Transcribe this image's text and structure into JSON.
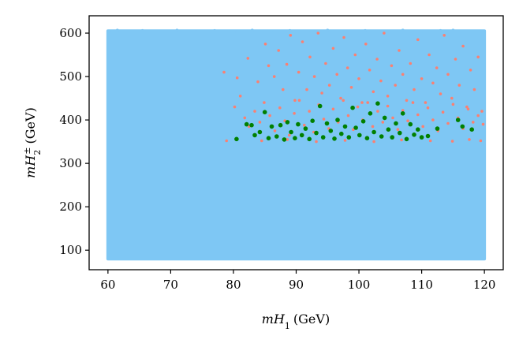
{
  "chart_data": {
    "type": "scatter",
    "xlabel": "mH1 (GeV)",
    "ylabel": "mH2± (GeV)",
    "xlim": [
      57,
      123
    ],
    "ylim": [
      55,
      640
    ],
    "xticks": [
      60,
      70,
      80,
      90,
      100,
      110,
      120
    ],
    "yticks": [
      100,
      200,
      300,
      400,
      500,
      600
    ],
    "grid": false,
    "legend": "none",
    "series": [
      {
        "color": "#7ec7f4",
        "marker_size": 3,
        "render": "dense-region",
        "region": {
          "x": [
            60,
            120
          ],
          "y": [
            80,
            605
          ]
        },
        "points": [
          [
            60.2,
            604
          ],
          [
            61.5,
            607
          ],
          [
            63,
            603
          ],
          [
            65.5,
            606
          ],
          [
            68,
            602
          ],
          [
            71,
            607
          ],
          [
            74,
            604
          ],
          [
            77,
            606
          ],
          [
            80.5,
            603
          ],
          [
            83,
            607
          ],
          [
            86,
            604
          ],
          [
            89,
            606
          ],
          [
            92,
            602
          ],
          [
            95,
            607
          ],
          [
            98,
            604
          ],
          [
            101,
            606
          ],
          [
            104,
            603
          ],
          [
            107,
            607
          ],
          [
            110,
            604
          ],
          [
            113,
            606
          ],
          [
            115,
            607
          ],
          [
            117,
            603
          ],
          [
            119.5,
            605
          ]
        ]
      },
      {
        "color": "#fa8072",
        "marker_size": 3,
        "render": "points",
        "points": [
          [
            78.5,
            510
          ],
          [
            80.6,
            497
          ],
          [
            81.1,
            455
          ],
          [
            82.3,
            542
          ],
          [
            83.9,
            488
          ],
          [
            85.1,
            575
          ],
          [
            85.6,
            525
          ],
          [
            86.5,
            500
          ],
          [
            87.2,
            560
          ],
          [
            87.9,
            470
          ],
          [
            88.5,
            528
          ],
          [
            89.1,
            595
          ],
          [
            89.8,
            445
          ],
          [
            90.4,
            510
          ],
          [
            91,
            580
          ],
          [
            91.7,
            470
          ],
          [
            92.2,
            545
          ],
          [
            92.9,
            500
          ],
          [
            93.5,
            600
          ],
          [
            94.1,
            462
          ],
          [
            94.7,
            530
          ],
          [
            95.3,
            480
          ],
          [
            95.9,
            565
          ],
          [
            96.5,
            505
          ],
          [
            97.1,
            450
          ],
          [
            97.6,
            590
          ],
          [
            98.2,
            520
          ],
          [
            98.8,
            475
          ],
          [
            99.4,
            550
          ],
          [
            100,
            495
          ],
          [
            100.5,
            440
          ],
          [
            101.1,
            575
          ],
          [
            101.7,
            515
          ],
          [
            102.3,
            465
          ],
          [
            102.9,
            540
          ],
          [
            103.5,
            490
          ],
          [
            104,
            600
          ],
          [
            104.6,
            455
          ],
          [
            105.2,
            525
          ],
          [
            105.8,
            480
          ],
          [
            106.4,
            560
          ],
          [
            107,
            505
          ],
          [
            107.6,
            445
          ],
          [
            108.2,
            530
          ],
          [
            108.8,
            470
          ],
          [
            109.4,
            585
          ],
          [
            110,
            495
          ],
          [
            110.6,
            440
          ],
          [
            111.2,
            550
          ],
          [
            111.8,
            485
          ],
          [
            112.4,
            520
          ],
          [
            113,
            460
          ],
          [
            113.6,
            595
          ],
          [
            114.2,
            505
          ],
          [
            114.8,
            450
          ],
          [
            115.4,
            540
          ],
          [
            116,
            480
          ],
          [
            116.6,
            570
          ],
          [
            117.2,
            430
          ],
          [
            117.8,
            515
          ],
          [
            118.4,
            470
          ],
          [
            119,
            545
          ],
          [
            119.6,
            420
          ],
          [
            80.2,
            430
          ],
          [
            81.8,
            405
          ],
          [
            82.5,
            385
          ],
          [
            83.4,
            420
          ],
          [
            84.2,
            395
          ],
          [
            84.9,
            440
          ],
          [
            85.8,
            410
          ],
          [
            86.6,
            375
          ],
          [
            87.4,
            428
          ],
          [
            88.2,
            398
          ],
          [
            88.9,
            365
          ],
          [
            89.7,
            415
          ],
          [
            90.5,
            445
          ],
          [
            91.3,
            388
          ],
          [
            92.1,
            420
          ],
          [
            92.8,
            372
          ],
          [
            93.6,
            435
          ],
          [
            94.4,
            402
          ],
          [
            95.2,
            380
          ],
          [
            95.9,
            425
          ],
          [
            96.7,
            395
          ],
          [
            97.5,
            445
          ],
          [
            98.3,
            410
          ],
          [
            99.1,
            378
          ],
          [
            99.8,
            430
          ],
          [
            100.6,
            400
          ],
          [
            101.4,
            440
          ],
          [
            102.2,
            385
          ],
          [
            103,
            420
          ],
          [
            103.8,
            395
          ],
          [
            104.6,
            432
          ],
          [
            105.4,
            405
          ],
          [
            106.2,
            378
          ],
          [
            107,
            422
          ],
          [
            107.8,
            398
          ],
          [
            108.6,
            440
          ],
          [
            109.4,
            412
          ],
          [
            110.2,
            385
          ],
          [
            111,
            428
          ],
          [
            111.8,
            400
          ],
          [
            112.6,
            375
          ],
          [
            113.4,
            418
          ],
          [
            114.2,
            392
          ],
          [
            115,
            436
          ],
          [
            115.8,
            405
          ],
          [
            116.6,
            380
          ],
          [
            117.4,
            425
          ],
          [
            118.2,
            395
          ],
          [
            119,
            410
          ],
          [
            119.8,
            390
          ],
          [
            78.9,
            352
          ],
          [
            84.5,
            352
          ],
          [
            88.6,
            355
          ],
          [
            93.2,
            350
          ],
          [
            97.8,
            353
          ],
          [
            102.4,
            350
          ],
          [
            106.8,
            354
          ],
          [
            111.4,
            352
          ],
          [
            114.9,
            351
          ],
          [
            117.6,
            355
          ],
          [
            119.4,
            352
          ]
        ]
      },
      {
        "color": "#008000",
        "marker_size": 5,
        "render": "points",
        "points": [
          [
            80.5,
            356
          ],
          [
            82.1,
            390
          ],
          [
            82.9,
            388
          ],
          [
            83.4,
            365
          ],
          [
            84.2,
            372
          ],
          [
            85,
            418
          ],
          [
            85.6,
            358
          ],
          [
            86.1,
            385
          ],
          [
            86.9,
            362
          ],
          [
            87.5,
            388
          ],
          [
            88.1,
            355
          ],
          [
            88.6,
            395
          ],
          [
            89.2,
            372
          ],
          [
            89.8,
            358
          ],
          [
            90.3,
            390
          ],
          [
            90.9,
            365
          ],
          [
            91.5,
            380
          ],
          [
            92.1,
            356
          ],
          [
            92.6,
            398
          ],
          [
            93.2,
            370
          ],
          [
            93.8,
            432
          ],
          [
            94.3,
            360
          ],
          [
            94.9,
            392
          ],
          [
            95.5,
            375
          ],
          [
            96.1,
            357
          ],
          [
            96.6,
            400
          ],
          [
            97.2,
            368
          ],
          [
            97.8,
            385
          ],
          [
            98.4,
            360
          ],
          [
            99,
            428
          ],
          [
            99.5,
            382
          ],
          [
            100.1,
            365
          ],
          [
            100.7,
            397
          ],
          [
            101.3,
            358
          ],
          [
            101.8,
            415
          ],
          [
            102.4,
            372
          ],
          [
            103,
            438
          ],
          [
            103.6,
            362
          ],
          [
            104.1,
            405
          ],
          [
            104.7,
            378
          ],
          [
            105.3,
            360
          ],
          [
            105.9,
            392
          ],
          [
            106.5,
            370
          ],
          [
            107,
            415
          ],
          [
            107.6,
            356
          ],
          [
            108.2,
            390
          ],
          [
            108.8,
            366
          ],
          [
            109.4,
            378
          ],
          [
            110,
            360
          ],
          [
            111,
            363
          ],
          [
            112.5,
            380
          ],
          [
            115.8,
            400
          ],
          [
            116.5,
            385
          ],
          [
            118,
            378
          ]
        ]
      }
    ]
  }
}
